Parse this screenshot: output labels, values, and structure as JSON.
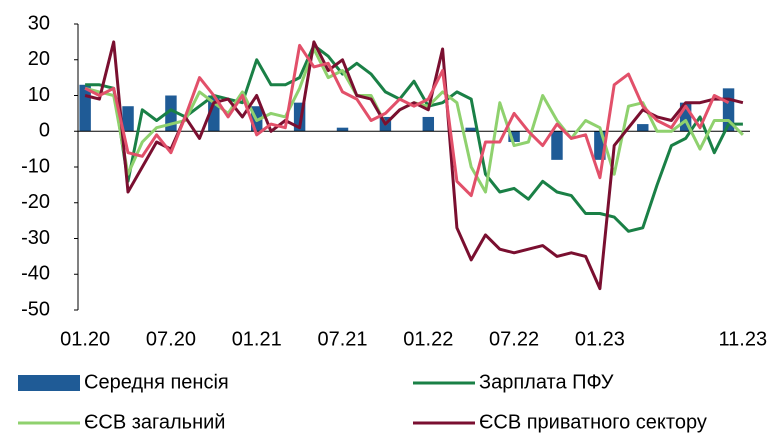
{
  "chart_data": {
    "type": "bar-line",
    "categories": [
      "01.20",
      null,
      null,
      null,
      null,
      null,
      "07.20",
      null,
      null,
      null,
      null,
      null,
      "01.21",
      null,
      null,
      null,
      null,
      null,
      "07.21",
      null,
      null,
      null,
      null,
      null,
      "01.22",
      null,
      null,
      null,
      null,
      null,
      "07.22",
      null,
      null,
      null,
      null,
      null,
      "01.23",
      null,
      null,
      null,
      null,
      null,
      null,
      null,
      null,
      null,
      "11.23"
    ],
    "ylim": [
      -50,
      30
    ],
    "yticks": [
      -50,
      -40,
      -30,
      -20,
      -10,
      0,
      10,
      20,
      30
    ],
    "series": [
      {
        "name": "Середня пенсія",
        "type": "bar",
        "color": "#1f5b96",
        "values": [
          13,
          null,
          null,
          7,
          null,
          null,
          10,
          null,
          null,
          10,
          null,
          null,
          7,
          null,
          null,
          8,
          null,
          null,
          1,
          null,
          null,
          4,
          null,
          null,
          4,
          null,
          null,
          1,
          null,
          null,
          -3,
          null,
          null,
          -8,
          null,
          null,
          -8,
          null,
          null,
          2,
          null,
          null,
          8,
          null,
          null,
          12,
          null
        ]
      },
      {
        "name": "Зарплата ПФУ",
        "type": "line",
        "color": "#1a8046",
        "values": [
          13,
          13,
          12,
          -14,
          6,
          3,
          6,
          4,
          7,
          10,
          9,
          8,
          20,
          13,
          13,
          15,
          24,
          21,
          16,
          19,
          16,
          11,
          9,
          14,
          7,
          8,
          11,
          9,
          -12,
          -17,
          -16,
          -19,
          -14,
          -17,
          -18,
          -23,
          -23,
          -24,
          -28,
          -27,
          -15,
          -4,
          -2,
          4,
          -6,
          2,
          2
        ]
      },
      {
        "name": "ЄСВ загальний",
        "type": "line",
        "color": "#8fd16e",
        "values": [
          12,
          11,
          10,
          -12,
          -3,
          1,
          2,
          3,
          11,
          8,
          5,
          11,
          3,
          5,
          4,
          12,
          23,
          15,
          17,
          10,
          10,
          2,
          6,
          8,
          7,
          11,
          8,
          -10,
          -17,
          8,
          -4,
          -3,
          10,
          3,
          -2,
          3,
          1,
          -12,
          7,
          8,
          0,
          0,
          3,
          -5,
          3,
          3,
          -1
        ]
      },
      {
        "name": "ЄСВ приватного сектору",
        "type": "line",
        "color": "#7a0f30",
        "values": [
          10,
          9,
          25,
          -17,
          -10,
          -3,
          -5,
          4,
          -2,
          8,
          9,
          4,
          10,
          0,
          3,
          1,
          25,
          17,
          20,
          10,
          9,
          2,
          6,
          8,
          6,
          23,
          -27,
          -36,
          -29,
          -33,
          -34,
          -33,
          -32,
          -35,
          -34,
          -35,
          -44,
          -4,
          1,
          6,
          4,
          3,
          8,
          8,
          9,
          9,
          8
        ]
      },
      {
        "type": "line",
        "color": "#e2506a",
        "values": [
          12,
          10,
          12,
          -6,
          -7,
          -1,
          -6,
          4,
          15,
          10,
          4,
          10,
          -1,
          2,
          1,
          24,
          18,
          19,
          11,
          9,
          3,
          5,
          9,
          7,
          9,
          17,
          -14,
          -18,
          -3,
          -3,
          5,
          0,
          -4,
          2,
          -2,
          -1,
          -13,
          13,
          16,
          7,
          3,
          1,
          7,
          1,
          10,
          8,
          null
        ]
      }
    ]
  }
}
